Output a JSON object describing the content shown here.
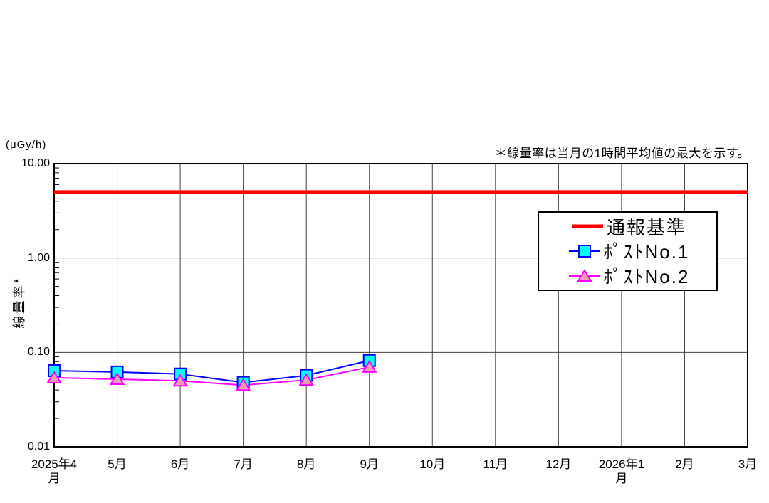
{
  "chart_data": {
    "type": "line",
    "unit_label": "(μGy/h)",
    "note": "＊線量率は当月の1時間平均値の最大を示す。",
    "ylabel": "線量率*",
    "y_scale": "log",
    "ylim": [
      0.01,
      10
    ],
    "y_ticks": [
      {
        "value": 10,
        "label": "10.00"
      },
      {
        "value": 1,
        "label": "1.00"
      },
      {
        "value": 0.1,
        "label": "0.10"
      },
      {
        "value": 0.01,
        "label": "0.01"
      }
    ],
    "categories": [
      "2025年4月",
      "5月",
      "6月",
      "7月",
      "8月",
      "9月",
      "10月",
      "11月",
      "12月",
      "2026年1月",
      "2月",
      "3月"
    ],
    "grid": true,
    "legend_position": "upper-right-inside",
    "threshold": {
      "name": "通報基準",
      "value": 5,
      "color": "#ff0000"
    },
    "series": [
      {
        "name": "ﾎﾟｽﾄNo.1",
        "marker": "square",
        "color": "#0000ff",
        "fill": "#00ffff",
        "values": [
          0.064,
          0.062,
          0.059,
          0.048,
          0.057,
          0.082
        ]
      },
      {
        "name": "ﾎﾟｽﾄNo.2",
        "marker": "triangle",
        "color": "#ff00ff",
        "fill": "#f2a0b0",
        "values": [
          0.054,
          0.052,
          0.05,
          0.045,
          0.051,
          0.07
        ]
      }
    ]
  }
}
